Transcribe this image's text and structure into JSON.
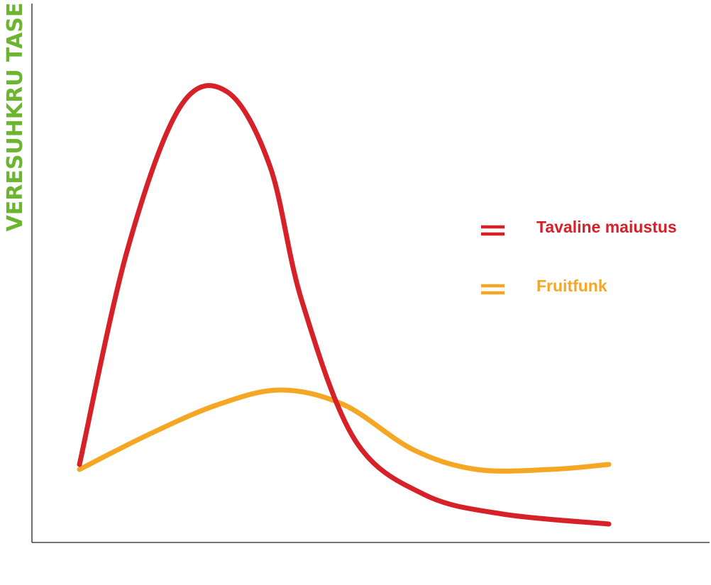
{
  "chart_data": {
    "type": "line",
    "title": "",
    "xlabel": "",
    "ylabel": "VERESUHKRU TASE",
    "ylabel_color": "#6bb531",
    "xlim": [
      0,
      10
    ],
    "ylim": [
      0,
      100
    ],
    "grid": false,
    "legend_position": "right",
    "series": [
      {
        "name": "Tavaline maiustus",
        "color": "#d62128",
        "x": [
          0,
          0.9,
          1.9,
          2.8,
          3.6,
          4.2,
          5.2,
          6.5,
          8.0,
          10
        ],
        "values": [
          15,
          58,
          87,
          90,
          75,
          48,
          20,
          9,
          5,
          3
        ]
      },
      {
        "name": "Fruitfunk",
        "color": "#f5a623",
        "x": [
          0,
          1.3,
          2.6,
          3.8,
          5.0,
          6.3,
          7.5,
          8.9,
          10
        ],
        "values": [
          14,
          21,
          27,
          30,
          27,
          18,
          14,
          14,
          15
        ]
      }
    ]
  }
}
